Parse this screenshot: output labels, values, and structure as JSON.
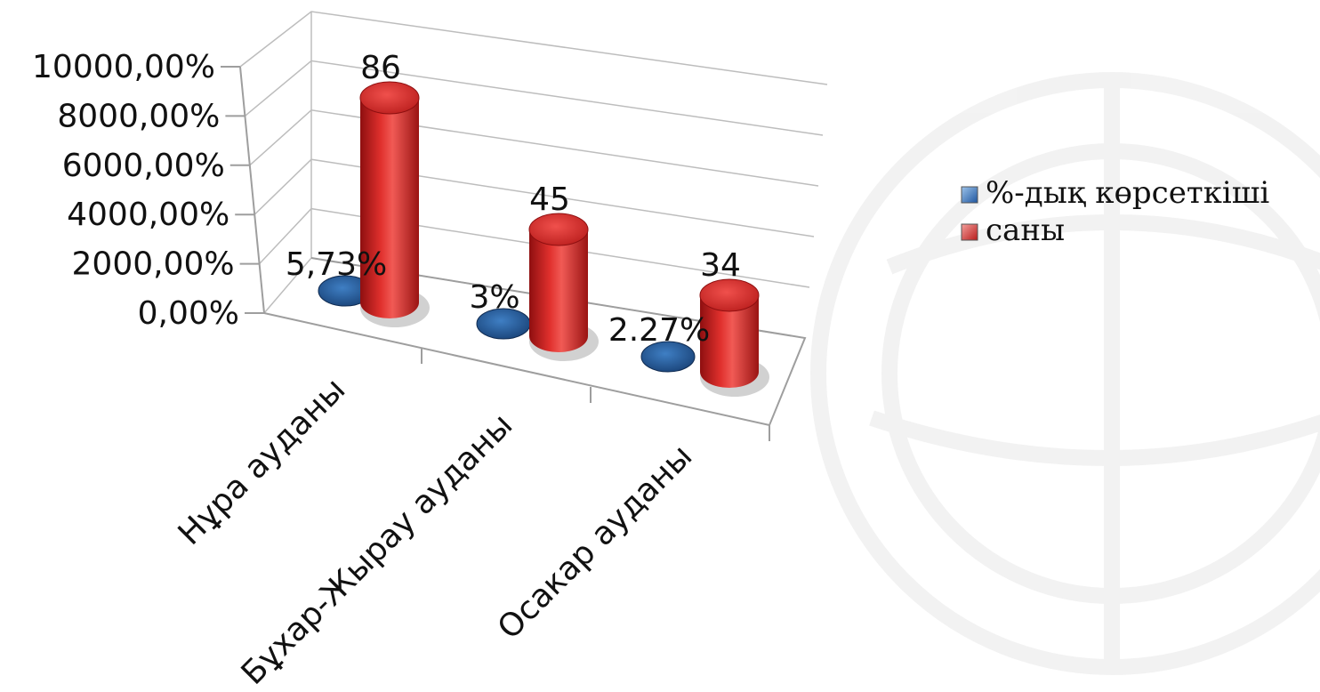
{
  "chart_data": {
    "type": "bar",
    "style": "3d-cylinder",
    "categories": [
      "Нұра ауданы",
      "Бұхар-Жырау ауданы",
      "Осакар ауданы"
    ],
    "series": [
      {
        "name": "%-дық көрсеткіші",
        "values": [
          5.73,
          3,
          2.27
        ],
        "labels": [
          "5,73%",
          "3%",
          "2.27%"
        ],
        "color": "#2e6bb0"
      },
      {
        "name": "саны",
        "values": [
          86,
          45,
          34
        ],
        "labels": [
          "86",
          "45",
          "34"
        ],
        "color": "#d42a27"
      }
    ],
    "yticks": [
      "0,00%",
      "2000,00%",
      "4000,00%",
      "6000,00%",
      "8000,00%",
      "10000,00%"
    ],
    "ylim": [
      0,
      100
    ],
    "grid": true,
    "legend": "right"
  },
  "colors": {
    "blue": "#2e6bb0",
    "red": "#d42a27",
    "grid": "#bdbdbd"
  }
}
